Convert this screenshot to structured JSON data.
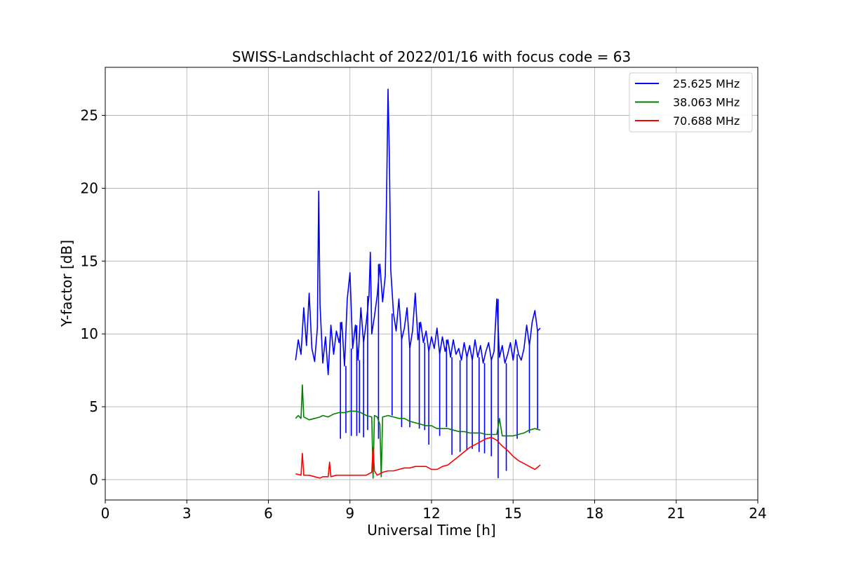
{
  "chart_data": {
    "type": "line",
    "title": "SWISS-Landschlacht of 2022/01/16 with focus code = 63",
    "xlabel": "Universal Time [h]",
    "ylabel": "Y-factor [dB]",
    "xlim": [
      0,
      24
    ],
    "ylim": [
      -1.4,
      28.3
    ],
    "xticks": [
      0,
      3,
      6,
      9,
      12,
      15,
      18,
      21,
      24
    ],
    "yticks": [
      0,
      5,
      10,
      15,
      20,
      25
    ],
    "grid": true,
    "legend_position": "top-right",
    "series": [
      {
        "name": "25.625 MHz",
        "color": "#0000ff",
        "points": [
          [
            7.0,
            8.2
          ],
          [
            7.1,
            9.6
          ],
          [
            7.2,
            8.6
          ],
          [
            7.3,
            11.8
          ],
          [
            7.4,
            9.2
          ],
          [
            7.5,
            12.8
          ],
          [
            7.6,
            9.0
          ],
          [
            7.7,
            8.1
          ],
          [
            7.8,
            10.4
          ],
          [
            7.85,
            19.8
          ],
          [
            7.9,
            12.0
          ],
          [
            8.0,
            8.0
          ],
          [
            8.1,
            9.8
          ],
          [
            8.2,
            7.2
          ],
          [
            8.3,
            10.6
          ],
          [
            8.4,
            8.6
          ],
          [
            8.5,
            10.2
          ],
          [
            8.6,
            9.4
          ],
          [
            8.7,
            10.8
          ],
          [
            8.8,
            7.8
          ],
          [
            8.9,
            12.4
          ],
          [
            9.0,
            14.2
          ],
          [
            9.1,
            9.0
          ],
          [
            9.2,
            10.6
          ],
          [
            9.3,
            8.2
          ],
          [
            9.4,
            11.8
          ],
          [
            9.5,
            9.4
          ],
          [
            9.6,
            10.8
          ],
          [
            9.7,
            12.6
          ],
          [
            9.75,
            15.6
          ],
          [
            9.8,
            10.0
          ],
          [
            9.9,
            11.2
          ],
          [
            10.0,
            12.6
          ],
          [
            10.1,
            14.8
          ],
          [
            10.2,
            12.2
          ],
          [
            10.3,
            14.0
          ],
          [
            10.35,
            20.0
          ],
          [
            10.4,
            26.8
          ],
          [
            10.45,
            22.2
          ],
          [
            10.5,
            14.4
          ],
          [
            10.6,
            11.4
          ],
          [
            10.7,
            10.2
          ],
          [
            10.8,
            12.4
          ],
          [
            10.9,
            9.6
          ],
          [
            11.0,
            10.4
          ],
          [
            11.1,
            11.8
          ],
          [
            11.2,
            9.0
          ],
          [
            11.3,
            10.2
          ],
          [
            11.4,
            12.8
          ],
          [
            11.5,
            9.6
          ],
          [
            11.6,
            10.8
          ],
          [
            11.7,
            9.4
          ],
          [
            11.8,
            10.2
          ],
          [
            11.9,
            8.8
          ],
          [
            12.0,
            9.8
          ],
          [
            12.1,
            9.0
          ],
          [
            12.2,
            10.4
          ],
          [
            12.3,
            8.6
          ],
          [
            12.4,
            9.8
          ],
          [
            12.5,
            8.8
          ],
          [
            12.6,
            9.6
          ],
          [
            12.7,
            8.4
          ],
          [
            12.8,
            9.6
          ],
          [
            12.9,
            8.6
          ],
          [
            13.0,
            9.0
          ],
          [
            13.1,
            8.2
          ],
          [
            13.2,
            9.4
          ],
          [
            13.3,
            8.4
          ],
          [
            13.4,
            9.2
          ],
          [
            13.5,
            8.2
          ],
          [
            13.6,
            9.6
          ],
          [
            13.7,
            8.4
          ],
          [
            13.8,
            9.2
          ],
          [
            13.9,
            8.0
          ],
          [
            14.0,
            8.8
          ],
          [
            14.1,
            9.4
          ],
          [
            14.2,
            8.2
          ],
          [
            14.3,
            8.8
          ],
          [
            14.4,
            12.4
          ],
          [
            14.5,
            8.4
          ],
          [
            14.6,
            9.2
          ],
          [
            14.7,
            8.0
          ],
          [
            14.8,
            8.6
          ],
          [
            14.9,
            9.4
          ],
          [
            15.0,
            8.2
          ],
          [
            15.1,
            9.6
          ],
          [
            15.2,
            8.6
          ],
          [
            15.3,
            8.2
          ],
          [
            15.4,
            9.0
          ],
          [
            15.5,
            10.6
          ],
          [
            15.6,
            9.2
          ],
          [
            15.7,
            10.8
          ],
          [
            15.8,
            11.6
          ],
          [
            15.9,
            10.2
          ],
          [
            16.0,
            10.4
          ]
        ],
        "dips": [
          [
            8.65,
            2.8
          ],
          [
            8.85,
            3.2
          ],
          [
            9.05,
            3.0
          ],
          [
            9.25,
            3.0
          ],
          [
            9.35,
            3.2
          ],
          [
            9.5,
            2.9
          ],
          [
            9.65,
            3.4
          ],
          [
            10.05,
            2.8
          ],
          [
            10.55,
            4.4
          ],
          [
            10.9,
            3.6
          ],
          [
            11.2,
            3.6
          ],
          [
            11.55,
            3.5
          ],
          [
            11.75,
            3.4
          ],
          [
            11.9,
            2.4
          ],
          [
            12.3,
            3.0
          ],
          [
            12.55,
            3.6
          ],
          [
            12.75,
            1.7
          ],
          [
            13.05,
            1.9
          ],
          [
            13.3,
            2.0
          ],
          [
            13.5,
            2.1
          ],
          [
            13.75,
            1.9
          ],
          [
            13.95,
            1.8
          ],
          [
            14.2,
            1.6
          ],
          [
            14.45,
            0.1
          ],
          [
            14.75,
            0.6
          ],
          [
            15.15,
            2.8
          ],
          [
            15.6,
            3.2
          ],
          [
            15.9,
            3.5
          ]
        ]
      },
      {
        "name": "38.063 MHz",
        "color": "#008000",
        "points": [
          [
            7.0,
            4.2
          ],
          [
            7.1,
            4.4
          ],
          [
            7.2,
            4.2
          ],
          [
            7.25,
            6.5
          ],
          [
            7.3,
            4.3
          ],
          [
            7.5,
            4.1
          ],
          [
            7.7,
            4.2
          ],
          [
            7.9,
            4.3
          ],
          [
            8.0,
            4.4
          ],
          [
            8.2,
            4.3
          ],
          [
            8.4,
            4.5
          ],
          [
            8.6,
            4.6
          ],
          [
            8.8,
            4.6
          ],
          [
            9.0,
            4.7
          ],
          [
            9.2,
            4.7
          ],
          [
            9.4,
            4.6
          ],
          [
            9.6,
            4.4
          ],
          [
            9.8,
            4.3
          ],
          [
            9.85,
            0.1
          ],
          [
            9.9,
            4.4
          ],
          [
            10.0,
            4.3
          ],
          [
            10.1,
            3.8
          ],
          [
            10.15,
            0.2
          ],
          [
            10.2,
            4.3
          ],
          [
            10.4,
            4.4
          ],
          [
            10.6,
            4.3
          ],
          [
            10.8,
            4.2
          ],
          [
            11.0,
            4.2
          ],
          [
            11.2,
            4.0
          ],
          [
            11.4,
            3.9
          ],
          [
            11.6,
            3.8
          ],
          [
            11.8,
            3.7
          ],
          [
            12.0,
            3.7
          ],
          [
            12.2,
            3.5
          ],
          [
            12.4,
            3.5
          ],
          [
            12.6,
            3.5
          ],
          [
            12.8,
            3.4
          ],
          [
            13.0,
            3.3
          ],
          [
            13.2,
            3.3
          ],
          [
            13.4,
            3.2
          ],
          [
            13.6,
            3.2
          ],
          [
            13.8,
            3.2
          ],
          [
            14.0,
            3.1
          ],
          [
            14.2,
            3.1
          ],
          [
            14.4,
            3.1
          ],
          [
            14.5,
            4.2
          ],
          [
            14.6,
            3.0
          ],
          [
            14.8,
            3.0
          ],
          [
            15.0,
            3.0
          ],
          [
            15.2,
            3.1
          ],
          [
            15.4,
            3.2
          ],
          [
            15.6,
            3.4
          ],
          [
            15.8,
            3.5
          ],
          [
            16.0,
            3.4
          ]
        ]
      },
      {
        "name": "70.688 MHz",
        "color": "#ff0000",
        "points": [
          [
            7.0,
            0.4
          ],
          [
            7.2,
            0.3
          ],
          [
            7.25,
            1.8
          ],
          [
            7.3,
            0.3
          ],
          [
            7.5,
            0.3
          ],
          [
            7.7,
            0.2
          ],
          [
            7.9,
            0.1
          ],
          [
            8.0,
            0.2
          ],
          [
            8.2,
            0.2
          ],
          [
            8.25,
            1.2
          ],
          [
            8.3,
            0.2
          ],
          [
            8.5,
            0.3
          ],
          [
            8.7,
            0.3
          ],
          [
            9.0,
            0.3
          ],
          [
            9.2,
            0.3
          ],
          [
            9.4,
            0.3
          ],
          [
            9.6,
            0.3
          ],
          [
            9.7,
            0.4
          ],
          [
            9.8,
            0.5
          ],
          [
            9.85,
            2.2
          ],
          [
            9.9,
            0.6
          ],
          [
            10.0,
            0.3
          ],
          [
            10.2,
            0.5
          ],
          [
            10.4,
            0.6
          ],
          [
            10.6,
            0.6
          ],
          [
            10.8,
            0.7
          ],
          [
            11.0,
            0.8
          ],
          [
            11.2,
            0.8
          ],
          [
            11.4,
            0.9
          ],
          [
            11.6,
            0.9
          ],
          [
            11.8,
            0.9
          ],
          [
            12.0,
            0.7
          ],
          [
            12.2,
            0.7
          ],
          [
            12.4,
            0.9
          ],
          [
            12.6,
            1.0
          ],
          [
            12.8,
            1.3
          ],
          [
            13.0,
            1.6
          ],
          [
            13.2,
            1.9
          ],
          [
            13.4,
            2.2
          ],
          [
            13.6,
            2.4
          ],
          [
            13.8,
            2.6
          ],
          [
            14.0,
            2.8
          ],
          [
            14.2,
            2.9
          ],
          [
            14.4,
            2.7
          ],
          [
            14.6,
            2.3
          ],
          [
            14.8,
            2.0
          ],
          [
            15.0,
            1.6
          ],
          [
            15.2,
            1.3
          ],
          [
            15.4,
            1.1
          ],
          [
            15.6,
            0.9
          ],
          [
            15.8,
            0.7
          ],
          [
            16.0,
            1.0
          ]
        ]
      }
    ]
  }
}
